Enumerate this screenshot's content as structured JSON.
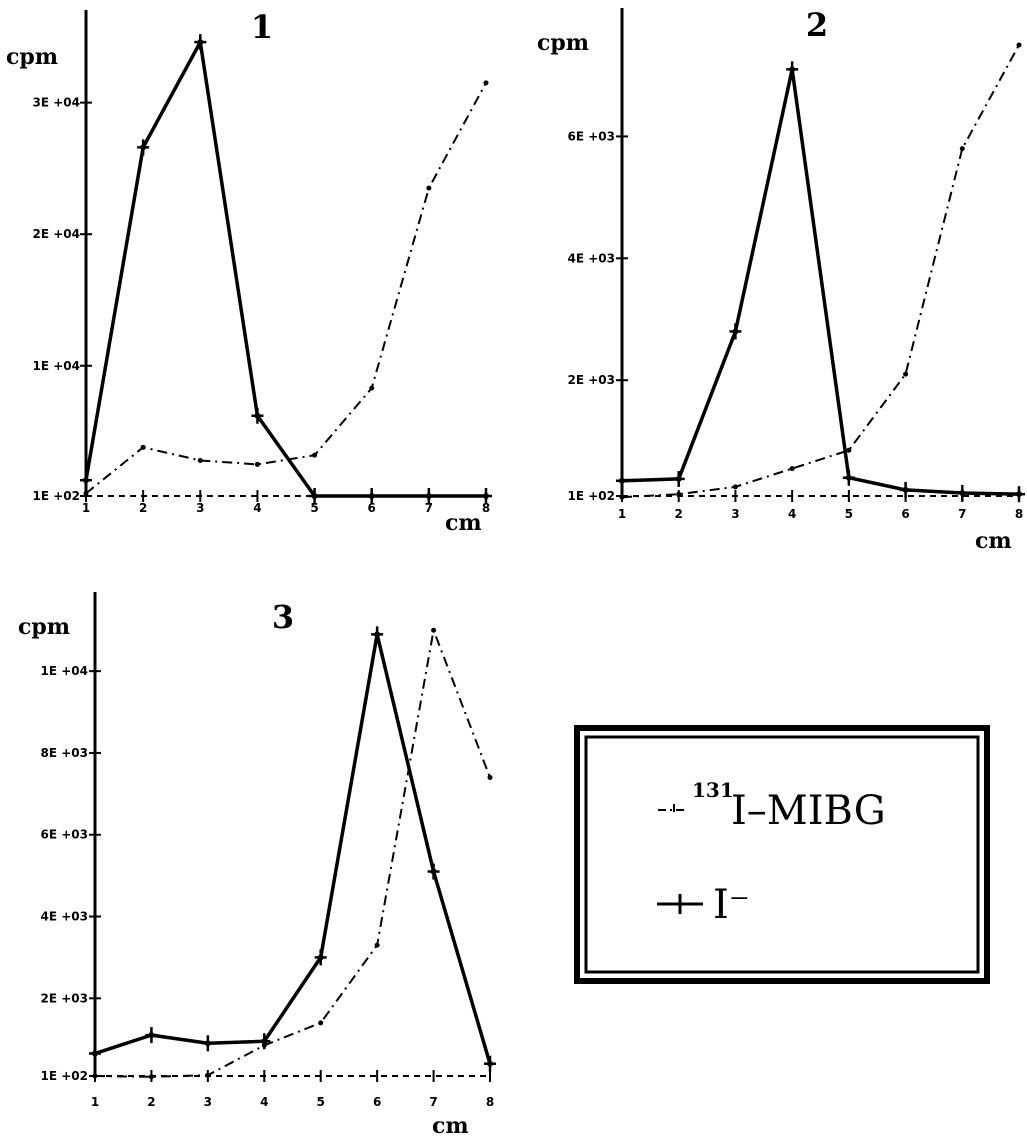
{
  "chart_data": [
    {
      "type": "line",
      "title": "1",
      "xlabel": "cm",
      "ylabel": "cpm",
      "x": [
        1,
        2,
        3,
        4,
        5,
        6,
        7,
        8
      ],
      "x_tick_labels": [
        "1",
        "2",
        "3",
        "4",
        "5",
        "6",
        "7",
        "8"
      ],
      "xlim": [
        1,
        8
      ],
      "y_tick_labels": [
        "1E +02",
        "1E +04",
        "2E +04",
        "3E +04"
      ],
      "y_tick_values": [
        100,
        10000,
        20000,
        30000
      ],
      "ylim": [
        100,
        34000
      ],
      "series": [
        {
          "name": "I⁻",
          "style": "solid-star",
          "values": [
            1300,
            26600,
            34600,
            6200,
            100,
            100,
            100,
            100
          ]
        },
        {
          "name": "¹³¹I-MIBG",
          "style": "dash-dot",
          "values": [
            300,
            3800,
            2800,
            2500,
            3200,
            8300,
            23500,
            31500
          ]
        }
      ]
    },
    {
      "type": "line",
      "title": "2",
      "xlabel": "cm",
      "ylabel": "cpm",
      "x": [
        1,
        2,
        3,
        4,
        5,
        6,
        7,
        8
      ],
      "x_tick_labels": [
        "1",
        "2",
        "3",
        "4",
        "5",
        "6",
        "7",
        "8"
      ],
      "xlim": [
        1,
        8
      ],
      "y_tick_labels": [
        "1E +02",
        "2E +03",
        "4E +03",
        "6E +03"
      ],
      "y_tick_values": [
        100,
        2000,
        4000,
        6000
      ],
      "ylim": [
        100,
        7500
      ],
      "series": [
        {
          "name": "I⁻",
          "style": "solid-star",
          "values": [
            350,
            380,
            2800,
            7100,
            400,
            200,
            150,
            130
          ]
        },
        {
          "name": "¹³¹I-MIBG",
          "style": "dash-dot",
          "values": [
            80,
            130,
            250,
            550,
            850,
            2100,
            5800,
            7500
          ]
        }
      ]
    },
    {
      "type": "line",
      "title": "3",
      "xlabel": "cm",
      "ylabel": "cpm",
      "x": [
        1,
        2,
        3,
        4,
        5,
        6,
        7,
        8
      ],
      "x_tick_labels": [
        "1",
        "2",
        "3",
        "4",
        "5",
        "6",
        "7",
        "8"
      ],
      "xlim": [
        1,
        8
      ],
      "y_tick_labels": [
        "1E +02",
        "2E +03",
        "4E +03",
        "6E +03",
        "8E +03",
        "1E +04"
      ],
      "y_tick_values": [
        100,
        2000,
        4000,
        6000,
        8000,
        10000
      ],
      "ylim": [
        100,
        11300
      ],
      "series": [
        {
          "name": "I⁻",
          "style": "solid-star",
          "values": [
            650,
            1100,
            900,
            950,
            3000,
            10900,
            5100,
            400
          ]
        },
        {
          "name": "¹³¹I-MIBG",
          "style": "dash-dot",
          "values": [
            100,
            80,
            120,
            850,
            1400,
            3300,
            11000,
            7400
          ]
        }
      ]
    }
  ],
  "legend": {
    "placement": "bottom-right",
    "entries": [
      {
        "superscript": "131",
        "label": "I–MIBG",
        "style": "dash-dot"
      },
      {
        "superscript": "",
        "label": "I⁻",
        "style": "solid-star"
      }
    ]
  }
}
